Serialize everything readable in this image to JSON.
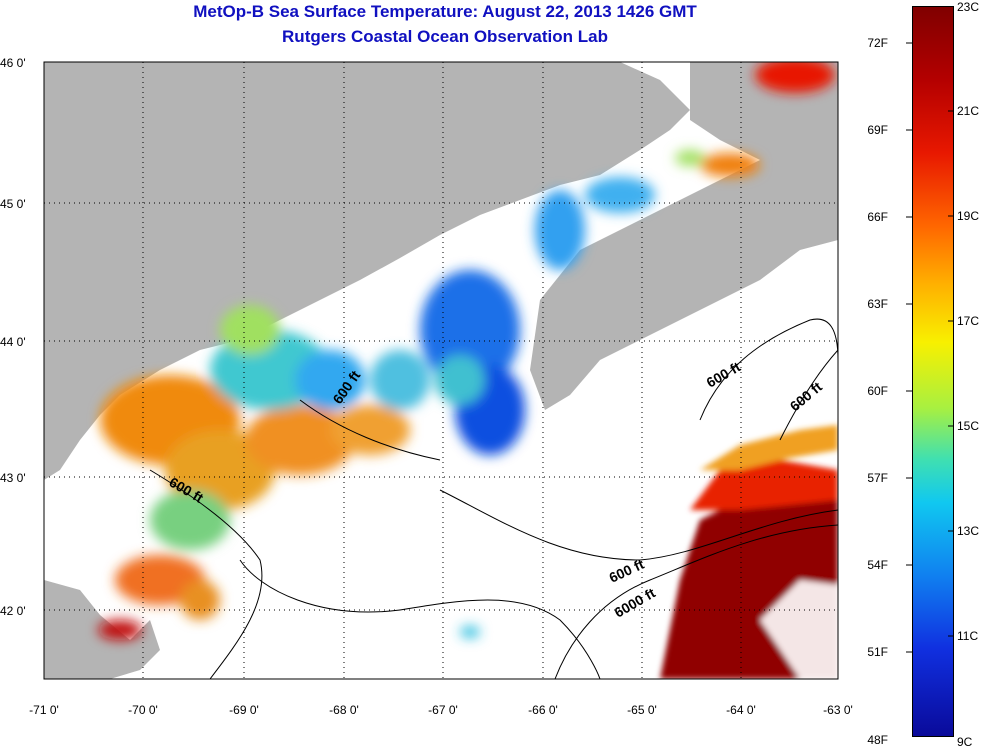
{
  "title": {
    "line1": "MetOp-B Sea Surface Temperature:  August 22, 2013 1426 GMT",
    "line2": "Rutgers Coastal Ocean Observation Lab"
  },
  "map": {
    "lat_labels": [
      "46 0'",
      "45 0'",
      "44 0'",
      "43 0'",
      "42 0'"
    ],
    "lon_labels": [
      "-71 0'",
      "-70 0'",
      "-69 0'",
      "-68 0'",
      "-67 0'",
      "-66 0'",
      "-65 0'",
      "-64 0'",
      "-63 0'"
    ],
    "contour_labels": [
      "600 ft",
      "600 ft",
      "600 ft",
      "600 ft",
      "600 ft",
      "6000 ft"
    ],
    "colors": {
      "land": "#b4b4b4",
      "no_data": "#ffffff",
      "axis": "#000000",
      "title": "#1010c0"
    }
  },
  "colorbar": {
    "fahrenheit_labels": [
      "72F",
      "69F",
      "66F",
      "63F",
      "60F",
      "57F",
      "54F",
      "51F",
      "48F"
    ],
    "celsius_labels": [
      "23C",
      "21C",
      "19C",
      "17C",
      "15C",
      "13C",
      "11C",
      "9C"
    ]
  }
}
